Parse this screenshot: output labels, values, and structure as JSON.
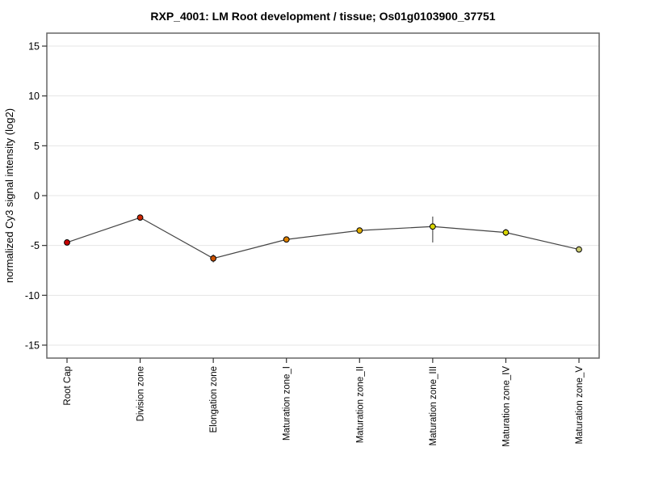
{
  "chart_data": {
    "type": "line",
    "title": "RXP_4001: LM Root development / tissue; Os01g0103900_37751",
    "xlabel": "",
    "ylabel": "normalized Cy3 signal intensity (log2)",
    "categories": [
      "Root Cap",
      "Division zone",
      "Elongation zone",
      "Maturation zone_I",
      "Maturation zone_II",
      "Maturation zone_III",
      "Maturation zone_IV",
      "Maturation zone_V"
    ],
    "values": [
      -4.7,
      -2.2,
      -6.3,
      -4.4,
      -3.5,
      -3.1,
      -3.7,
      -5.4
    ],
    "error_low": [
      -4.95,
      -2.5,
      -6.7,
      -4.65,
      -3.75,
      -4.7,
      -4.05,
      -5.7
    ],
    "error_high": [
      -4.45,
      -1.9,
      -5.9,
      -4.15,
      -3.25,
      -2.1,
      -3.35,
      -5.1
    ],
    "point_colors": [
      "#c80000",
      "#cd2600",
      "#cc5200",
      "#dd8100",
      "#e0ad00",
      "#d8d500",
      "#d8d500",
      "#cbcb72"
    ],
    "yticks": [
      15,
      10,
      5,
      0,
      -5,
      -10,
      -15
    ],
    "ylim": [
      -16.3,
      16.3
    ],
    "grid": true,
    "legend": false,
    "line_color": "#444444",
    "error_bar_color": "#555555",
    "marker_outline": "#000000",
    "grid_color": "#e4e4e4",
    "border_color": "#666666",
    "tick_color": "#333333",
    "background": "#ffffff"
  }
}
